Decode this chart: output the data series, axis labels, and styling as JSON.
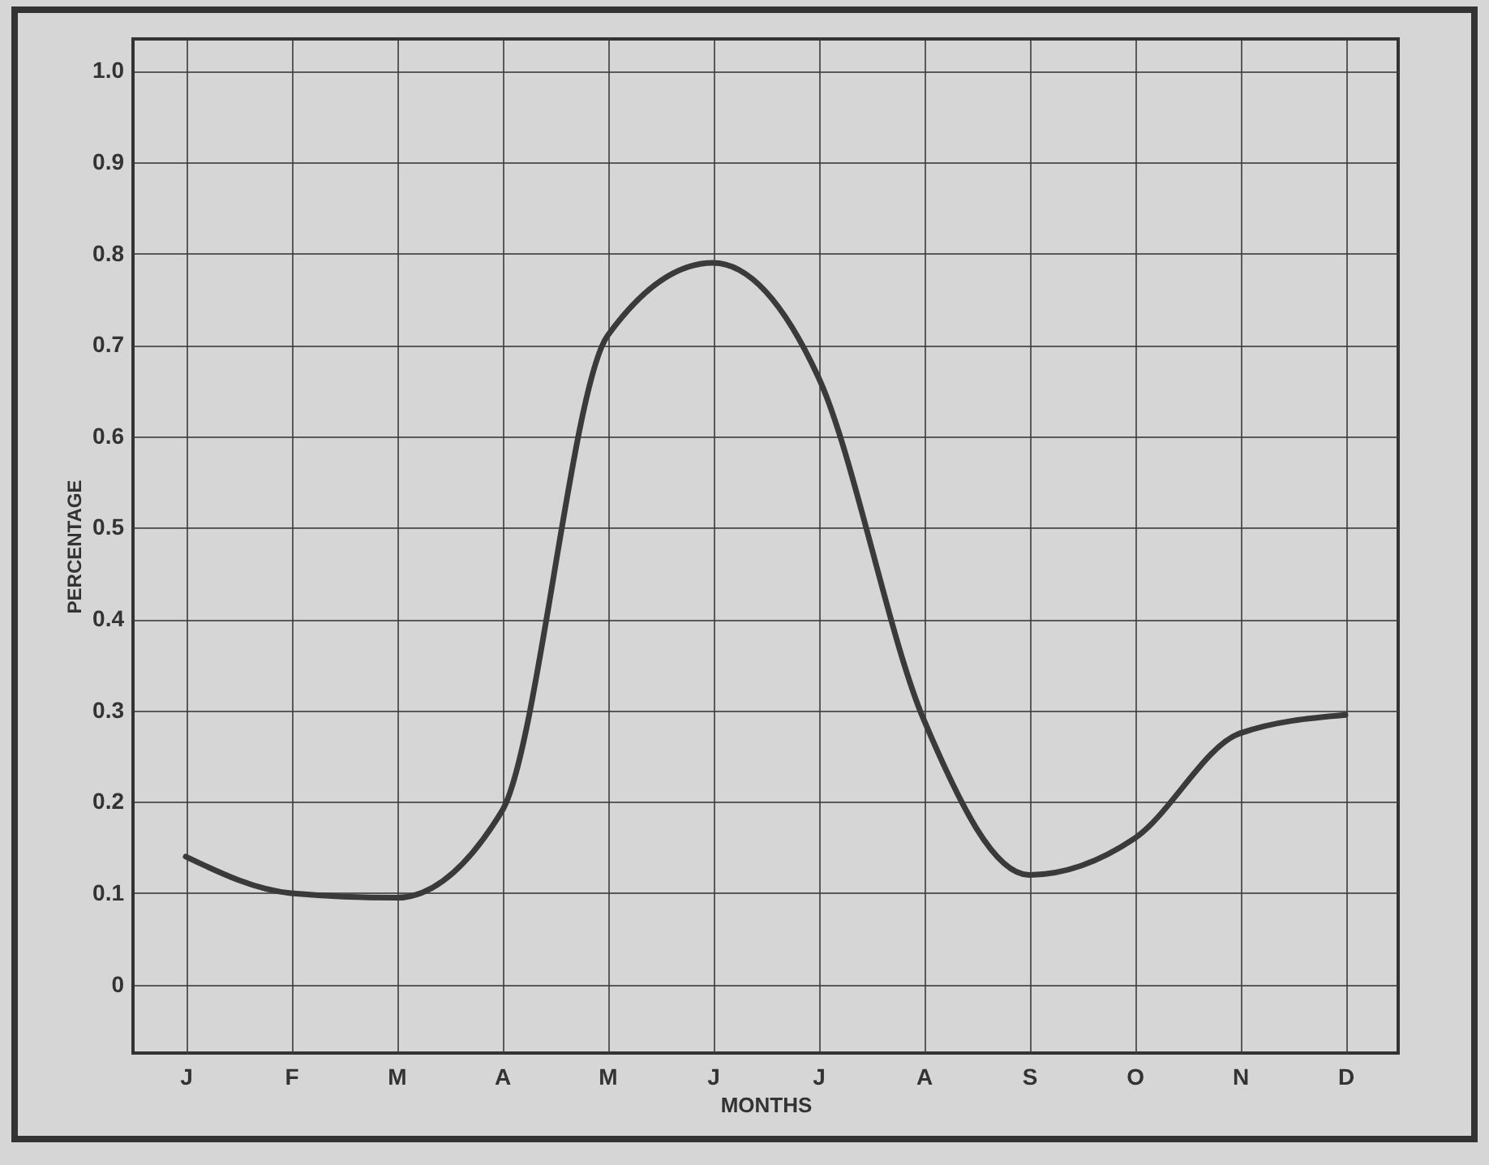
{
  "chart_data": {
    "type": "line",
    "xlabel": "MONTHS",
    "ylabel": "PERCENTAGE",
    "categories": [
      "J",
      "F",
      "M",
      "A",
      "M",
      "J",
      "J",
      "A",
      "S",
      "O",
      "N",
      "D"
    ],
    "ylim": [
      -0.075,
      1.035
    ],
    "yticks": [
      0,
      0.1,
      0.2,
      0.3,
      0.4,
      0.5,
      0.6,
      0.7,
      0.8,
      0.9,
      {
        "value": 1,
        "label": "1.0"
      }
    ],
    "grid": true,
    "marker": "none",
    "line_style": "solid",
    "series": [
      {
        "color": "#3a3a3a",
        "values": [
          0.14,
          0.1,
          0.095,
          0.19,
          0.71,
          0.79,
          0.665,
          0.29,
          0.12,
          0.16,
          0.275,
          0.295
        ]
      }
    ]
  }
}
